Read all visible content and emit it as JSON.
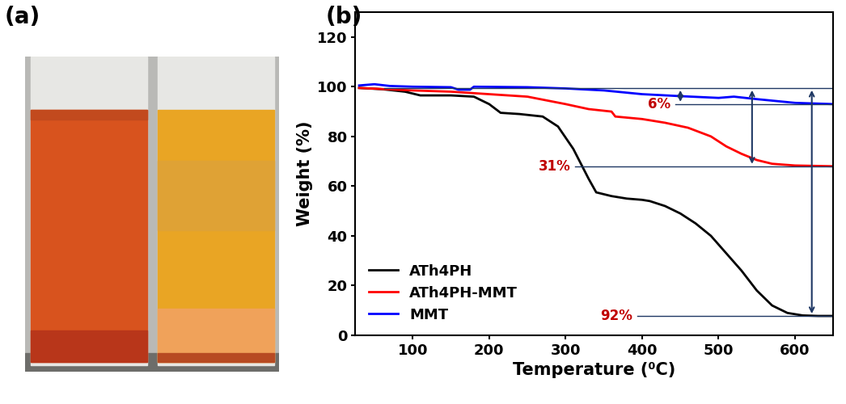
{
  "photo": {
    "label": "(a)"
  },
  "chart_data": {
    "type": "line",
    "title": "(b)",
    "x_label": "Temperature (⁰C)",
    "y_label": "Weight (%)",
    "xlim": [
      25,
      650
    ],
    "xticks": [
      100,
      200,
      300,
      400,
      500,
      600
    ],
    "ylim": [
      0,
      130
    ],
    "yticks": [
      0,
      20,
      40,
      60,
      80,
      100,
      120
    ],
    "legend": "lower left",
    "grid": false,
    "series": [
      {
        "name": "ATh4PH",
        "color": "#000000",
        "annotation": "92%",
        "x": [
          30,
          60,
          90,
          110,
          150,
          180,
          200,
          215,
          240,
          270,
          290,
          310,
          330,
          340,
          360,
          380,
          400,
          410,
          430,
          450,
          470,
          490,
          510,
          530,
          550,
          570,
          590,
          610,
          630,
          650
        ],
        "values": [
          99.5,
          99,
          98,
          96.5,
          96.5,
          96,
          93,
          89.5,
          89,
          88,
          84,
          75,
          63,
          57.5,
          56,
          55,
          54.5,
          54,
          52,
          49,
          45,
          40,
          33,
          26,
          18,
          12,
          9,
          8,
          7.8,
          7.8
        ]
      },
      {
        "name": "ATh4PH-MMT",
        "color": "#ff0000",
        "annotation": "31%",
        "x": [
          30,
          100,
          150,
          200,
          250,
          300,
          330,
          360,
          365,
          400,
          430,
          460,
          490,
          510,
          530,
          550,
          570,
          600,
          650
        ],
        "values": [
          99.5,
          98.5,
          98,
          97,
          96,
          93,
          91,
          90,
          88,
          87,
          85.5,
          83.5,
          80,
          76,
          73,
          70.5,
          69,
          68.3,
          68
        ]
      },
      {
        "name": "MMT",
        "color": "#0000ff",
        "annotation": "6%",
        "x": [
          30,
          50,
          70,
          100,
          150,
          160,
          175,
          180,
          250,
          300,
          350,
          400,
          450,
          500,
          520,
          550,
          600,
          650
        ],
        "values": [
          100.5,
          101,
          100.3,
          100,
          99.8,
          98.8,
          98.8,
          100,
          99.8,
          99.3,
          98.5,
          97,
          96.2,
          95.5,
          96,
          95,
          93.5,
          93
        ]
      }
    ]
  }
}
